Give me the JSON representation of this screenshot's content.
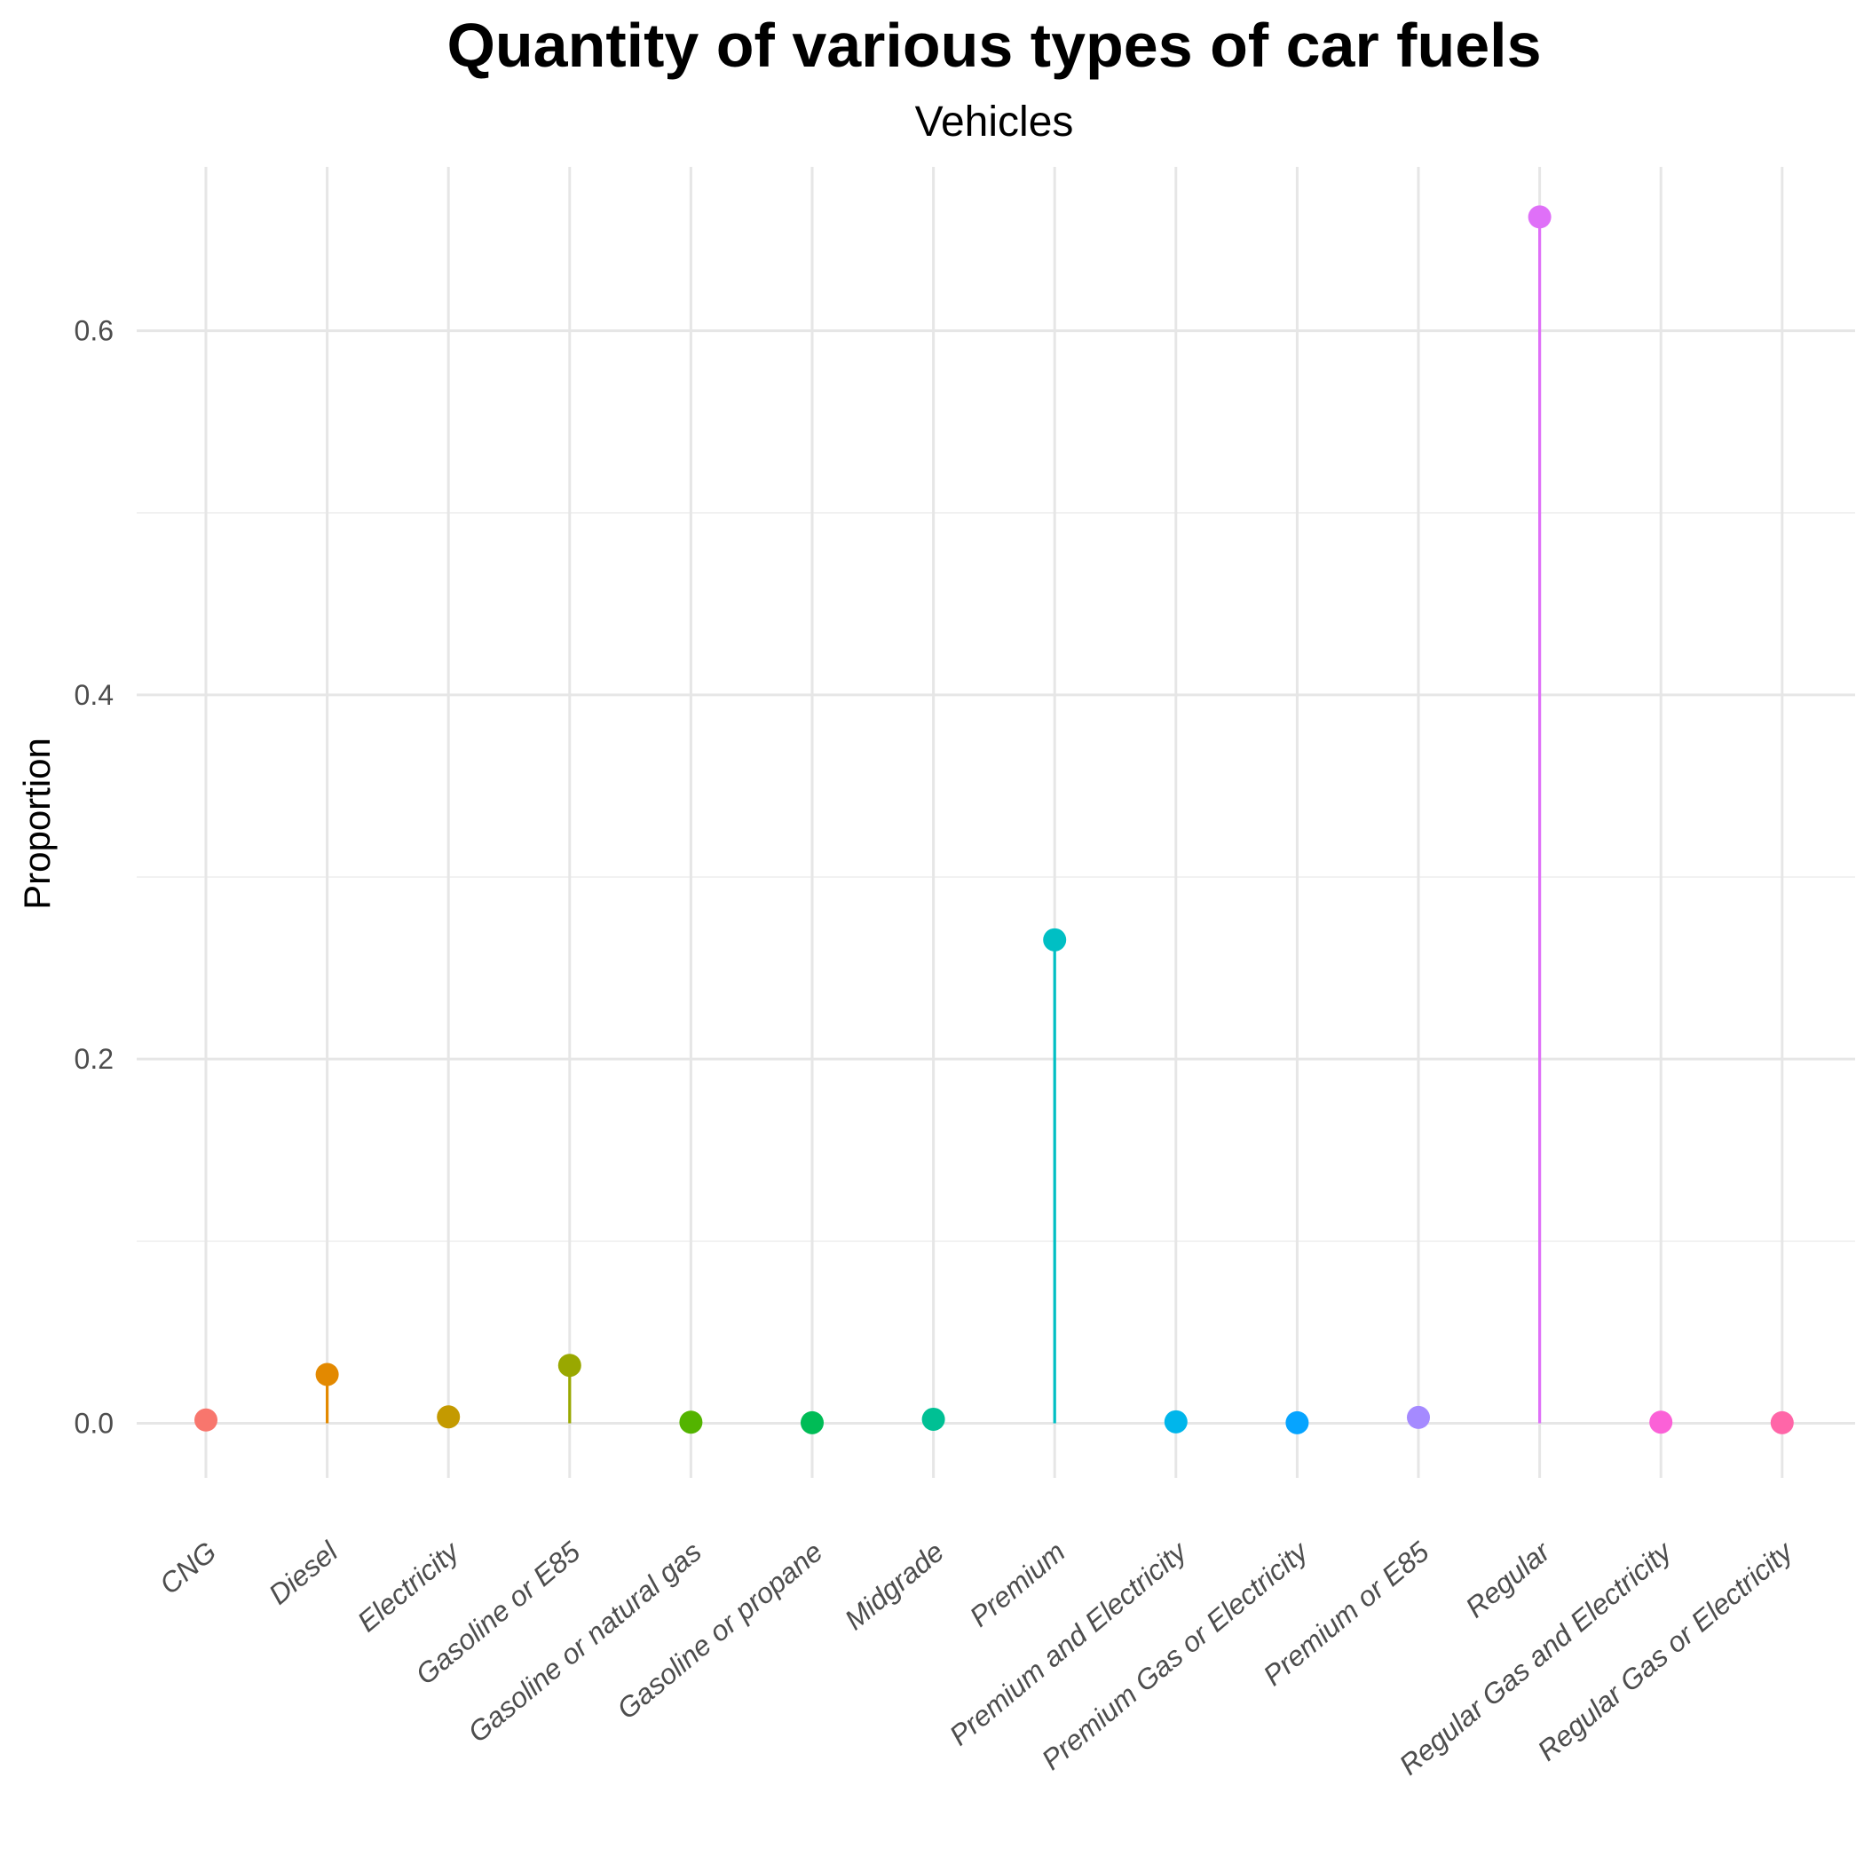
{
  "chart_data": {
    "type": "lollipop",
    "title": "Quantity of various types of car fuels",
    "subtitle": "Vehicles",
    "xlabel": "",
    "ylabel": "Proportion",
    "ylim": [
      -0.03,
      0.69
    ],
    "yticks": [
      0.0,
      0.2,
      0.4,
      0.6
    ],
    "ytick_labels": [
      "0.0",
      "0.2",
      "0.4",
      "0.6"
    ],
    "grid": true,
    "legend": "none",
    "categories": [
      "CNG",
      "Diesel",
      "Electricity",
      "Gasoline or E85",
      "Gasoline or natural gas",
      "Gasoline or propane",
      "Midgrade",
      "Premium",
      "Premium and Electricity",
      "Premium Gas or Electricity",
      "Premium or E85",
      "Regular",
      "Regular Gas and Electricity",
      "Regular Gas or Electricity"
    ],
    "values": [
      0.0018,
      0.0268,
      0.0035,
      0.0318,
      0.0006,
      0.0003,
      0.0022,
      0.2655,
      0.0008,
      0.0003,
      0.0032,
      0.6625,
      0.0006,
      0.0003
    ],
    "colors": [
      "#F8766D",
      "#E38900",
      "#C49A00",
      "#99A800",
      "#53B400",
      "#00BC56",
      "#00C094",
      "#00BFC4",
      "#00B6EB",
      "#06A4FF",
      "#A58AFF",
      "#DF70F8",
      "#FB61D7",
      "#FF66A8"
    ]
  }
}
